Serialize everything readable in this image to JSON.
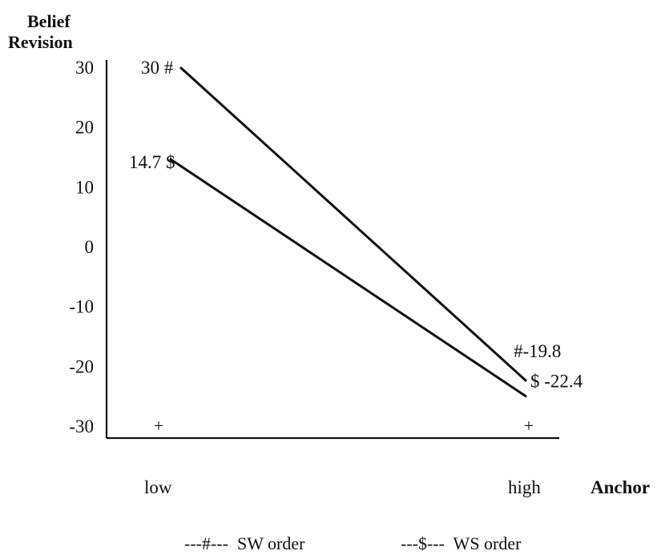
{
  "chart_data": {
    "type": "line",
    "title": "",
    "ylabel": "Belief Revision",
    "xlabel": "Anchor",
    "categories": [
      "low",
      "high"
    ],
    "yticks": [
      30,
      20,
      10,
      0,
      -10,
      -20,
      -30
    ],
    "ylim": [
      -30,
      30
    ],
    "grid": false,
    "series": [
      {
        "name": "SW order",
        "marker": "#",
        "values": [
          30,
          -19.8
        ],
        "labels": [
          "30",
          "-19.8"
        ]
      },
      {
        "name": "WS order",
        "marker": "$",
        "values": [
          14.7,
          -22.4
        ],
        "labels": [
          "14.7",
          "-22.4"
        ]
      }
    ],
    "legend": {
      "placement": "bottom",
      "items": [
        {
          "text": "---#---  SW order"
        },
        {
          "text": "---$---  WS order"
        }
      ]
    }
  }
}
